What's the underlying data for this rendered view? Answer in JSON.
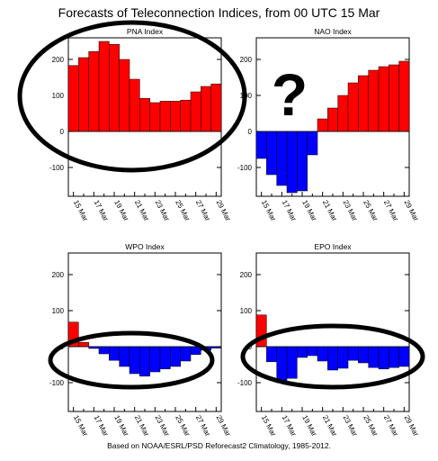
{
  "title": "Forecasts of Teleconnection Indices, from 00 UTC 15 Mar",
  "footer": "Based on NOAA/ESRL/PSD Reforecast2 Climatology, 1985-2012.",
  "colors": {
    "positive": "#ff0000",
    "negative": "#0000ff",
    "annotation": "#000000"
  },
  "question_mark": "?",
  "chart_data": [
    {
      "type": "bar",
      "title": "PNA Index",
      "categories": [
        "15 Mar",
        "16 Mar",
        "17 Mar",
        "18 Mar",
        "19 Mar",
        "20 Mar",
        "21 Mar",
        "22 Mar",
        "23 Mar",
        "24 Mar",
        "25 Mar",
        "26 Mar",
        "27 Mar",
        "28 Mar",
        "29 Mar"
      ],
      "tick_labels": [
        "15 Mar",
        "17 Mar",
        "19 Mar",
        "21 Mar",
        "23 Mar",
        "25 Mar",
        "27 Mar",
        "29 Mar"
      ],
      "values": [
        183,
        205,
        222,
        250,
        242,
        200,
        145,
        92,
        80,
        84,
        84,
        87,
        110,
        125,
        132
      ],
      "ylim": [
        -180,
        260
      ],
      "yticks": [
        -100,
        0,
        100,
        200
      ],
      "annotation": "ellipse around bars"
    },
    {
      "type": "bar",
      "title": "NAO Index",
      "categories": [
        "15 Mar",
        "16 Mar",
        "17 Mar",
        "18 Mar",
        "19 Mar",
        "20 Mar",
        "21 Mar",
        "22 Mar",
        "23 Mar",
        "24 Mar",
        "25 Mar",
        "26 Mar",
        "27 Mar",
        "28 Mar",
        "29 Mar"
      ],
      "tick_labels": [
        "15 Mar",
        "17 Mar",
        "19 Mar",
        "21 Mar",
        "23 Mar",
        "25 Mar",
        "27 Mar",
        "29 Mar"
      ],
      "values": [
        -75,
        -120,
        -150,
        -170,
        -165,
        -65,
        35,
        65,
        100,
        135,
        155,
        170,
        180,
        185,
        195
      ],
      "ylim": [
        -180,
        260
      ],
      "yticks": [
        -100,
        0,
        100,
        200
      ],
      "annotation": "question mark"
    },
    {
      "type": "bar",
      "title": "WPO Index",
      "categories": [
        "15 Mar",
        "16 Mar",
        "17 Mar",
        "18 Mar",
        "19 Mar",
        "20 Mar",
        "21 Mar",
        "22 Mar",
        "23 Mar",
        "24 Mar",
        "25 Mar",
        "26 Mar",
        "27 Mar",
        "28 Mar",
        "29 Mar"
      ],
      "tick_labels": [
        "15 Mar",
        "17 Mar",
        "19 Mar",
        "21 Mar",
        "23 Mar",
        "25 Mar",
        "27 Mar",
        "29 Mar"
      ],
      "values": [
        68,
        12,
        -5,
        -20,
        -38,
        -55,
        -75,
        -82,
        -70,
        -62,
        -55,
        -40,
        -22,
        -10,
        -4
      ],
      "ylim": [
        -180,
        260
      ],
      "yticks": [
        -100,
        0,
        100,
        200
      ],
      "annotation": "ellipse around negative bars"
    },
    {
      "type": "bar",
      "title": "EPO Index",
      "categories": [
        "15 Mar",
        "16 Mar",
        "17 Mar",
        "18 Mar",
        "19 Mar",
        "20 Mar",
        "21 Mar",
        "22 Mar",
        "23 Mar",
        "24 Mar",
        "25 Mar",
        "26 Mar",
        "27 Mar",
        "28 Mar",
        "29 Mar"
      ],
      "tick_labels": [
        "15 Mar",
        "17 Mar",
        "19 Mar",
        "21 Mar",
        "23 Mar",
        "25 Mar",
        "27 Mar",
        "29 Mar"
      ],
      "values": [
        88,
        -42,
        -100,
        -88,
        -30,
        -25,
        -40,
        -65,
        -60,
        -38,
        -45,
        -58,
        -62,
        -58,
        -55
      ],
      "ylim": [
        -180,
        260
      ],
      "yticks": [
        -100,
        0,
        100,
        200
      ],
      "annotation": "ellipse around negative bars"
    }
  ]
}
